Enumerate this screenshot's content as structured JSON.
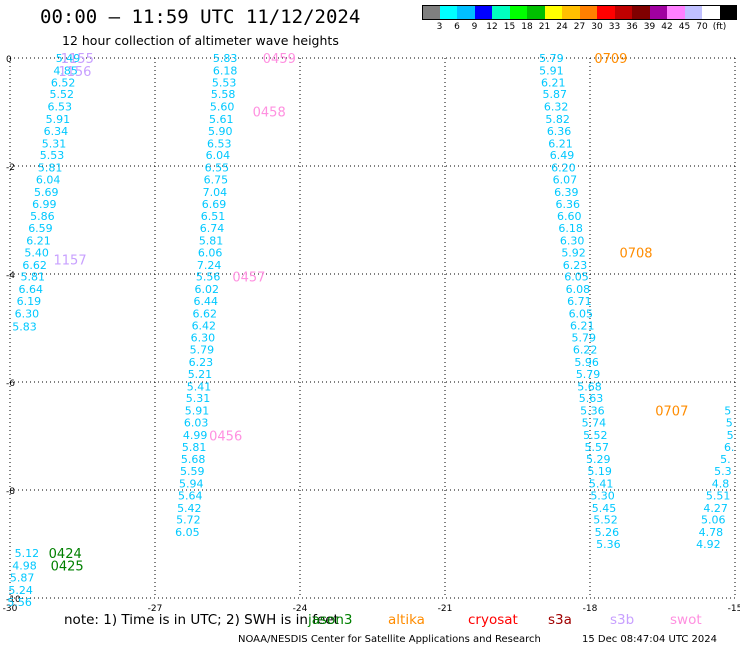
{
  "header": {
    "title": "00:00 – 11:59 UTC 11/12/2024",
    "subtitle": "12 hour collection of altimeter wave heights"
  },
  "colorbar": {
    "colors": [
      "#7f7f7f",
      "#00ffff",
      "#00bfff",
      "#0000ff",
      "#00ffbf",
      "#00ff00",
      "#00bf00",
      "#ffff00",
      "#ffbf00",
      "#ff8000",
      "#ff0000",
      "#bf0000",
      "#800000",
      "#a000a0",
      "#ff80ff",
      "#c0c0ff",
      "#ffffff",
      "#000000"
    ],
    "labels": [
      "3",
      "6",
      "9",
      "12",
      "15",
      "18",
      "21",
      "24",
      "27",
      "30",
      "33",
      "36",
      "39",
      "42",
      "45",
      "70",
      "(ft)"
    ]
  },
  "footer": {
    "note": "note:  1) Time is in UTC; 2) SWH is in feet",
    "satellites": [
      {
        "name": "jason3",
        "color": "#008000"
      },
      {
        "name": "altika",
        "color": "#ff8c00"
      },
      {
        "name": "cryosat",
        "color": "#ff0000"
      },
      {
        "name": "s3a",
        "color": "#a00000"
      },
      {
        "name": "s3b",
        "color": "#c8a0ff"
      },
      {
        "name": "swot",
        "color": "#ff90e0"
      }
    ],
    "credit": "NOAA/NESDIS Center for Satellite Applications and Research",
    "timestamp": "15 Dec 08:47:04 UTC 2024"
  },
  "chart_data": {
    "type": "scatter",
    "title": "00:00 – 11:59 UTC 11/12/2024",
    "subtitle": "12 hour collection of altimeter wave heights",
    "xlabel": "",
    "ylabel": "",
    "xlim": [
      -30,
      -15
    ],
    "ylim": [
      -10,
      0
    ],
    "x_ticks": [
      -30,
      -27,
      -24,
      -21,
      -18,
      -15
    ],
    "y_ticks": [
      0,
      -2,
      -4,
      -6,
      -8,
      -10
    ],
    "grid": true,
    "units": "ft",
    "point_color": "#00c8ff",
    "tracks": [
      {
        "satellite": "swot",
        "color": "#c8a0ff",
        "points": [
          {
            "x": -28.8,
            "y": 0.0,
            "v": "5.49"
          },
          {
            "x": -28.85,
            "y": -0.23,
            "v": "4.85"
          },
          {
            "x": -28.9,
            "y": -0.45,
            "v": "6.52"
          },
          {
            "x": -28.93,
            "y": -0.67,
            "v": "5.52"
          },
          {
            "x": -28.97,
            "y": -0.9,
            "v": "6.53"
          },
          {
            "x": -29.01,
            "y": -1.13,
            "v": "5.91"
          },
          {
            "x": -29.05,
            "y": -1.35,
            "v": "6.34"
          },
          {
            "x": -29.09,
            "y": -1.58,
            "v": "5.31"
          },
          {
            "x": -29.13,
            "y": -1.8,
            "v": "5.53"
          },
          {
            "x": -29.17,
            "y": -2.03,
            "v": "5.81"
          },
          {
            "x": -29.21,
            "y": -2.25,
            "v": "6.04"
          },
          {
            "x": -29.25,
            "y": -2.48,
            "v": "5.69"
          },
          {
            "x": -29.29,
            "y": -2.7,
            "v": "6.99"
          },
          {
            "x": -29.33,
            "y": -2.93,
            "v": "5.86"
          },
          {
            "x": -29.37,
            "y": -3.15,
            "v": "6.59"
          },
          {
            "x": -29.41,
            "y": -3.38,
            "v": "6.21"
          },
          {
            "x": -29.45,
            "y": -3.6,
            "v": "5.40"
          },
          {
            "x": -29.49,
            "y": -3.83,
            "v": "6.62"
          },
          {
            "x": -29.53,
            "y": -4.05,
            "v": "5.81"
          },
          {
            "x": -29.57,
            "y": -4.28,
            "v": "6.64"
          },
          {
            "x": -29.61,
            "y": -4.5,
            "v": "6.19"
          },
          {
            "x": -29.65,
            "y": -4.73,
            "v": "6.30"
          },
          {
            "x": -29.7,
            "y": -4.97,
            "v": "5.83"
          }
        ],
        "labels": [
          {
            "text": "1155",
            "x": -28.95,
            "y": 0.0
          },
          {
            "text": "1156",
            "x": -29.0,
            "y": -0.24
          },
          {
            "text": "1157",
            "x": -29.1,
            "y": -3.73
          }
        ]
      },
      {
        "satellite": "jason3",
        "color": "#008000",
        "points": [
          {
            "x": -29.65,
            "y": -9.17,
            "v": "5.12"
          },
          {
            "x": -29.7,
            "y": -9.4,
            "v": "4.98"
          },
          {
            "x": -29.75,
            "y": -9.62,
            "v": "5.87"
          },
          {
            "x": -29.78,
            "y": -9.85,
            "v": "5.24"
          },
          {
            "x": -29.8,
            "y": -10.07,
            "v": "5.56"
          }
        ],
        "labels": [
          {
            "text": "0424",
            "x": -29.2,
            "y": -9.17
          },
          {
            "text": "0425",
            "x": -29.16,
            "y": -9.4
          }
        ]
      },
      {
        "satellite": "swot",
        "color": "#ff90e0",
        "points": [
          {
            "x": -25.55,
            "y": 0.0,
            "v": "5.83"
          },
          {
            "x": -25.55,
            "y": -0.23,
            "v": "6.18"
          },
          {
            "x": -25.57,
            "y": -0.45,
            "v": "5.53"
          },
          {
            "x": -25.59,
            "y": -0.67,
            "v": "5.58"
          },
          {
            "x": -25.61,
            "y": -0.9,
            "v": "5.60"
          },
          {
            "x": -25.63,
            "y": -1.13,
            "v": "5.61"
          },
          {
            "x": -25.65,
            "y": -1.35,
            "v": "5.90"
          },
          {
            "x": -25.67,
            "y": -1.58,
            "v": "6.53"
          },
          {
            "x": -25.7,
            "y": -1.8,
            "v": "6.04"
          },
          {
            "x": -25.72,
            "y": -2.03,
            "v": "6.55"
          },
          {
            "x": -25.74,
            "y": -2.25,
            "v": "6.75"
          },
          {
            "x": -25.76,
            "y": -2.48,
            "v": "7.04"
          },
          {
            "x": -25.78,
            "y": -2.7,
            "v": "6.69"
          },
          {
            "x": -25.8,
            "y": -2.93,
            "v": "6.51"
          },
          {
            "x": -25.82,
            "y": -3.15,
            "v": "6.74"
          },
          {
            "x": -25.84,
            "y": -3.38,
            "v": "5.81"
          },
          {
            "x": -25.86,
            "y": -3.6,
            "v": "6.06"
          },
          {
            "x": -25.88,
            "y": -3.83,
            "v": "7.24"
          },
          {
            "x": -25.9,
            "y": -4.05,
            "v": "5.56"
          },
          {
            "x": -25.93,
            "y": -4.28,
            "v": "6.02"
          },
          {
            "x": -25.95,
            "y": -4.5,
            "v": "6.44"
          },
          {
            "x": -25.97,
            "y": -4.73,
            "v": "6.62"
          },
          {
            "x": -25.99,
            "y": -4.95,
            "v": "6.42"
          },
          {
            "x": -26.01,
            "y": -5.18,
            "v": "6.30"
          },
          {
            "x": -26.03,
            "y": -5.4,
            "v": "5.79"
          },
          {
            "x": -26.05,
            "y": -5.63,
            "v": "6.23"
          },
          {
            "x": -26.07,
            "y": -5.85,
            "v": "5.21"
          },
          {
            "x": -26.09,
            "y": -6.08,
            "v": "5.41"
          },
          {
            "x": -26.11,
            "y": -6.3,
            "v": "5.31"
          },
          {
            "x": -26.13,
            "y": -6.53,
            "v": "5.91"
          },
          {
            "x": -26.15,
            "y": -6.75,
            "v": "6.03"
          },
          {
            "x": -26.17,
            "y": -6.98,
            "v": "4.99"
          },
          {
            "x": -26.19,
            "y": -7.2,
            "v": "5.81"
          },
          {
            "x": -26.21,
            "y": -7.43,
            "v": "5.68"
          },
          {
            "x": -26.23,
            "y": -7.65,
            "v": "5.59"
          },
          {
            "x": -26.25,
            "y": -7.88,
            "v": "5.94"
          },
          {
            "x": -26.27,
            "y": -8.1,
            "v": "5.64"
          },
          {
            "x": -26.29,
            "y": -8.33,
            "v": "5.42"
          },
          {
            "x": -26.31,
            "y": -8.55,
            "v": "5.72"
          },
          {
            "x": -26.33,
            "y": -8.78,
            "v": "6.05"
          }
        ],
        "labels": [
          {
            "text": "0459",
            "x": -24.77,
            "y": 0.0
          },
          {
            "text": "0458",
            "x": -24.98,
            "y": -0.99
          },
          {
            "text": "0457",
            "x": -25.4,
            "y": -4.05
          },
          {
            "text": "0456",
            "x": -25.88,
            "y": -6.99
          }
        ]
      },
      {
        "satellite": "altika",
        "color": "#ff8c00",
        "points": [
          {
            "x": -18.8,
            "y": 0.0,
            "v": "5.79"
          },
          {
            "x": -18.8,
            "y": -0.23,
            "v": "5.91"
          },
          {
            "x": -18.76,
            "y": -0.45,
            "v": "6.21"
          },
          {
            "x": -18.73,
            "y": -0.67,
            "v": "5.87"
          },
          {
            "x": -18.7,
            "y": -0.9,
            "v": "6.32"
          },
          {
            "x": -18.67,
            "y": -1.13,
            "v": "5.82"
          },
          {
            "x": -18.64,
            "y": -1.35,
            "v": "6.36"
          },
          {
            "x": -18.61,
            "y": -1.58,
            "v": "6.21"
          },
          {
            "x": -18.58,
            "y": -1.8,
            "v": "6.49"
          },
          {
            "x": -18.55,
            "y": -2.03,
            "v": "6.20"
          },
          {
            "x": -18.52,
            "y": -2.25,
            "v": "6.07"
          },
          {
            "x": -18.49,
            "y": -2.48,
            "v": "6.39"
          },
          {
            "x": -18.46,
            "y": -2.7,
            "v": "6.36"
          },
          {
            "x": -18.43,
            "y": -2.93,
            "v": "6.60"
          },
          {
            "x": -18.4,
            "y": -3.15,
            "v": "6.18"
          },
          {
            "x": -18.37,
            "y": -3.38,
            "v": "6.30"
          },
          {
            "x": -18.34,
            "y": -3.6,
            "v": "5.92"
          },
          {
            "x": -18.31,
            "y": -3.83,
            "v": "6.23"
          },
          {
            "x": -18.28,
            "y": -4.05,
            "v": "6.05"
          },
          {
            "x": -18.25,
            "y": -4.28,
            "v": "6.08"
          },
          {
            "x": -18.22,
            "y": -4.5,
            "v": "6.71"
          },
          {
            "x": -18.19,
            "y": -4.73,
            "v": "6.05"
          },
          {
            "x": -18.16,
            "y": -4.95,
            "v": "6.21"
          },
          {
            "x": -18.13,
            "y": -5.18,
            "v": "5.79"
          },
          {
            "x": -18.1,
            "y": -5.4,
            "v": "6.22"
          },
          {
            "x": -18.07,
            "y": -5.63,
            "v": "5.96"
          },
          {
            "x": -18.04,
            "y": -5.85,
            "v": "5.79"
          },
          {
            "x": -18.01,
            "y": -6.08,
            "v": "5.68"
          },
          {
            "x": -17.98,
            "y": -6.3,
            "v": "5.63"
          },
          {
            "x": -17.95,
            "y": -6.53,
            "v": "5.36"
          },
          {
            "x": -17.92,
            "y": -6.75,
            "v": "5.74"
          },
          {
            "x": -17.89,
            "y": -6.98,
            "v": "5.52"
          },
          {
            "x": -17.86,
            "y": -7.2,
            "v": "5.57"
          },
          {
            "x": -17.83,
            "y": -7.43,
            "v": "5.29"
          },
          {
            "x": -17.8,
            "y": -7.65,
            "v": "5.19"
          },
          {
            "x": -17.77,
            "y": -7.88,
            "v": "5.41"
          },
          {
            "x": -17.74,
            "y": -8.1,
            "v": "5.30"
          },
          {
            "x": -17.71,
            "y": -8.33,
            "v": "5.45"
          },
          {
            "x": -17.68,
            "y": -8.55,
            "v": "5.52"
          },
          {
            "x": -17.65,
            "y": -8.78,
            "v": "5.26"
          },
          {
            "x": -17.62,
            "y": -9.0,
            "v": "5.36"
          }
        ],
        "labels": [
          {
            "text": "0709",
            "x": -17.91,
            "y": 0.0
          },
          {
            "text": "0708",
            "x": -17.39,
            "y": -3.6
          },
          {
            "text": "0707",
            "x": -16.65,
            "y": -6.53
          }
        ]
      },
      {
        "satellite": "unknown",
        "color": "#000000",
        "points": [
          {
            "x": -15.15,
            "y": -6.53,
            "v": "5"
          },
          {
            "x": -15.12,
            "y": -6.75,
            "v": "5"
          },
          {
            "x": -15.1,
            "y": -6.98,
            "v": "5"
          },
          {
            "x": -15.12,
            "y": -7.2,
            "v": "6."
          },
          {
            "x": -15.2,
            "y": -7.43,
            "v": "5."
          },
          {
            "x": -15.25,
            "y": -7.65,
            "v": "5.3"
          },
          {
            "x": -15.3,
            "y": -7.88,
            "v": "4.8"
          },
          {
            "x": -15.35,
            "y": -8.1,
            "v": "5.51"
          },
          {
            "x": -15.4,
            "y": -8.33,
            "v": "4.27"
          },
          {
            "x": -15.45,
            "y": -8.55,
            "v": "5.06"
          },
          {
            "x": -15.5,
            "y": -8.78,
            "v": "4.78"
          },
          {
            "x": -15.55,
            "y": -9.0,
            "v": "4.92"
          }
        ],
        "labels": []
      }
    ]
  }
}
